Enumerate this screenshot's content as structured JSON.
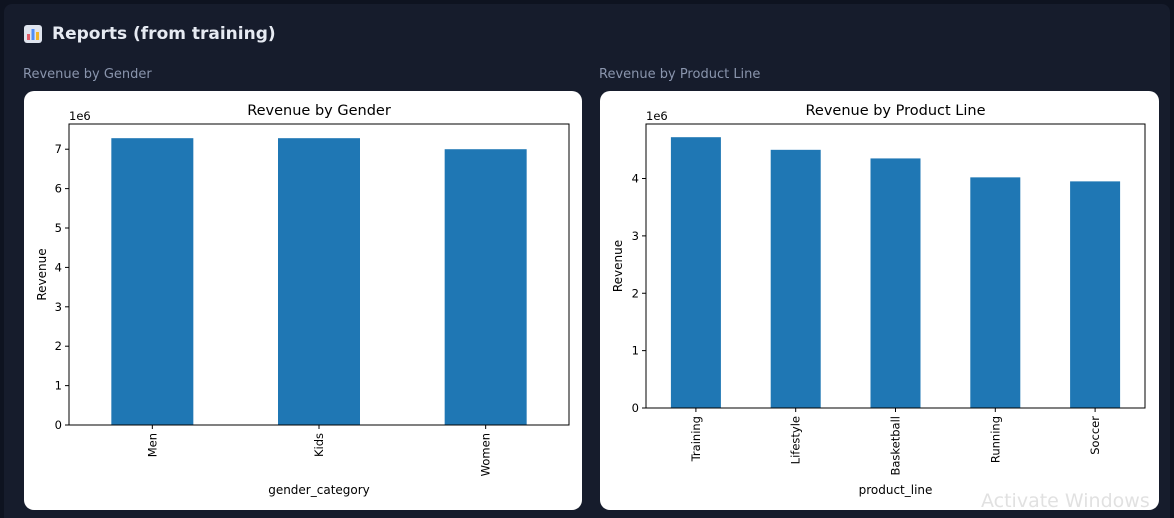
{
  "header": {
    "icon": "bar-chart-icon",
    "title": "Reports (from training)"
  },
  "reports": [
    {
      "label": "Revenue by Gender",
      "chart_data": {
        "type": "bar",
        "title": "Revenue by Gender",
        "xlabel": "gender_category",
        "ylabel": "Revenue",
        "y_scale_label": "1e6",
        "categories": [
          "Men",
          "Kids",
          "Women"
        ],
        "values": [
          7.28,
          7.28,
          7.0
        ],
        "ylim": [
          0,
          7.64
        ],
        "yticks": [
          0,
          1,
          2,
          3,
          4,
          5,
          6,
          7
        ],
        "bar_color": "#1f77b4",
        "grid": false
      }
    },
    {
      "label": "Revenue by Product Line",
      "chart_data": {
        "type": "bar",
        "title": "Revenue by Product Line",
        "xlabel": "product_line",
        "ylabel": "Revenue",
        "y_scale_label": "1e6",
        "categories": [
          "Training",
          "Lifestyle",
          "Basketball",
          "Running",
          "Soccer"
        ],
        "values": [
          4.72,
          4.5,
          4.35,
          4.02,
          3.95
        ],
        "ylim": [
          0,
          4.95
        ],
        "yticks": [
          0,
          1,
          2,
          3,
          4
        ],
        "bar_color": "#1f77b4",
        "grid": false
      }
    }
  ],
  "watermark": "Activate Windows"
}
